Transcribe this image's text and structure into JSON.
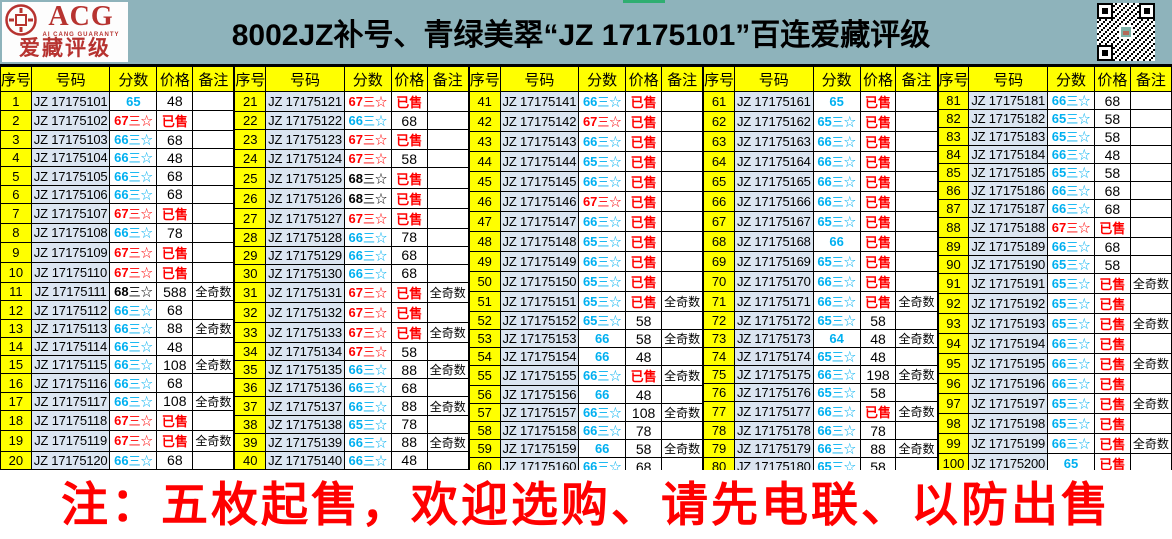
{
  "header": {
    "title": "8002JZ补号、青绿美翠“JZ 17175101”百连爱藏评级",
    "logo": {
      "acronym": "ACG",
      "subtitle": "AI CANG GUARANTY",
      "brand": "爱藏评级"
    },
    "icons": {
      "seal": "coin-seal-icon",
      "qr": "qr-code-icon"
    }
  },
  "colors": {
    "banner_bg": "#8eb3bb",
    "header_cell_yellow": "#ffff00",
    "number_cell_blue": "#dbe5f1",
    "score_blue": "#00B0F0",
    "score_red": "#FF0000",
    "score_black": "#000000",
    "sold_red": "#ff0000",
    "notice_red": "#ff0000",
    "logo_red": "#b73330",
    "green_tab": "#2fae71"
  },
  "table": {
    "columns": [
      "序号",
      "号码",
      "分数",
      "价格",
      "备注"
    ],
    "sold_label": "已售",
    "rows": [
      {
        "no": "1",
        "num": "JZ 17175101",
        "score": "65",
        "color": "#00B0F0",
        "price": "48",
        "note": ""
      },
      {
        "no": "2",
        "num": "JZ 17175102",
        "score": "67三☆",
        "color": "#FF0000",
        "price": "已售",
        "note": ""
      },
      {
        "no": "3",
        "num": "JZ 17175103",
        "score": "66三☆",
        "color": "#00B0F0",
        "price": "68",
        "note": ""
      },
      {
        "no": "4",
        "num": "JZ 17175104",
        "score": "66三☆",
        "color": "#00B0F0",
        "price": "48",
        "note": ""
      },
      {
        "no": "5",
        "num": "JZ 17175105",
        "score": "66三☆",
        "color": "#00B0F0",
        "price": "68",
        "note": ""
      },
      {
        "no": "6",
        "num": "JZ 17175106",
        "score": "66三☆",
        "color": "#00B0F0",
        "price": "68",
        "note": ""
      },
      {
        "no": "7",
        "num": "JZ 17175107",
        "score": "67三☆",
        "color": "#FF0000",
        "price": "已售",
        "note": ""
      },
      {
        "no": "8",
        "num": "JZ 17175108",
        "score": "66三☆",
        "color": "#00B0F0",
        "price": "78",
        "note": ""
      },
      {
        "no": "9",
        "num": "JZ 17175109",
        "score": "67三☆",
        "color": "#FF0000",
        "price": "已售",
        "note": ""
      },
      {
        "no": "10",
        "num": "JZ 17175110",
        "score": "67三☆",
        "color": "#FF0000",
        "price": "已售",
        "note": ""
      },
      {
        "no": "11",
        "num": "JZ 17175111",
        "score": "68三☆",
        "color": "#000000",
        "price": "588",
        "note": "全奇数"
      },
      {
        "no": "12",
        "num": "JZ 17175112",
        "score": "66三☆",
        "color": "#00B0F0",
        "price": "68",
        "note": ""
      },
      {
        "no": "13",
        "num": "JZ 17175113",
        "score": "66三☆",
        "color": "#00B0F0",
        "price": "88",
        "note": "全奇数"
      },
      {
        "no": "14",
        "num": "JZ 17175114",
        "score": "66三☆",
        "color": "#00B0F0",
        "price": "48",
        "note": ""
      },
      {
        "no": "15",
        "num": "JZ 17175115",
        "score": "66三☆",
        "color": "#00B0F0",
        "price": "108",
        "note": "全奇数"
      },
      {
        "no": "16",
        "num": "JZ 17175116",
        "score": "66三☆",
        "color": "#00B0F0",
        "price": "68",
        "note": ""
      },
      {
        "no": "17",
        "num": "JZ 17175117",
        "score": "66三☆",
        "color": "#00B0F0",
        "price": "108",
        "note": "全奇数"
      },
      {
        "no": "18",
        "num": "JZ 17175118",
        "score": "67三☆",
        "color": "#FF0000",
        "price": "已售",
        "note": ""
      },
      {
        "no": "19",
        "num": "JZ 17175119",
        "score": "67三☆",
        "color": "#FF0000",
        "price": "已售",
        "note": "全奇数"
      },
      {
        "no": "20",
        "num": "JZ 17175120",
        "score": "66三☆",
        "color": "#00B0F0",
        "price": "68",
        "note": ""
      },
      {
        "no": "21",
        "num": "JZ 17175121",
        "score": "67三☆",
        "color": "#FF0000",
        "price": "已售",
        "note": ""
      },
      {
        "no": "22",
        "num": "JZ 17175122",
        "score": "66三☆",
        "color": "#00B0F0",
        "price": "68",
        "note": ""
      },
      {
        "no": "23",
        "num": "JZ 17175123",
        "score": "67三☆",
        "color": "#FF0000",
        "price": "已售",
        "note": ""
      },
      {
        "no": "24",
        "num": "JZ 17175124",
        "score": "67三☆",
        "color": "#FF0000",
        "price": "58",
        "note": ""
      },
      {
        "no": "25",
        "num": "JZ 17175125",
        "score": "68三☆",
        "color": "#000000",
        "price": "已售",
        "note": ""
      },
      {
        "no": "26",
        "num": "JZ 17175126",
        "score": "68三☆",
        "color": "#000000",
        "price": "已售",
        "note": ""
      },
      {
        "no": "27",
        "num": "JZ 17175127",
        "score": "67三☆",
        "color": "#FF0000",
        "price": "已售",
        "note": ""
      },
      {
        "no": "28",
        "num": "JZ 17175128",
        "score": "66三☆",
        "color": "#00B0F0",
        "price": "78",
        "note": ""
      },
      {
        "no": "29",
        "num": "JZ 17175129",
        "score": "66三☆",
        "color": "#00B0F0",
        "price": "68",
        "note": ""
      },
      {
        "no": "30",
        "num": "JZ 17175130",
        "score": "66三☆",
        "color": "#00B0F0",
        "price": "68",
        "note": ""
      },
      {
        "no": "31",
        "num": "JZ 17175131",
        "score": "67三☆",
        "color": "#FF0000",
        "price": "已售",
        "note": "全奇数"
      },
      {
        "no": "32",
        "num": "JZ 17175132",
        "score": "67三☆",
        "color": "#FF0000",
        "price": "已售",
        "note": ""
      },
      {
        "no": "33",
        "num": "JZ 17175133",
        "score": "67三☆",
        "color": "#FF0000",
        "price": "已售",
        "note": "全奇数"
      },
      {
        "no": "34",
        "num": "JZ 17175134",
        "score": "67三☆",
        "color": "#FF0000",
        "price": "58",
        "note": ""
      },
      {
        "no": "35",
        "num": "JZ 17175135",
        "score": "66三☆",
        "color": "#00B0F0",
        "price": "88",
        "note": "全奇数"
      },
      {
        "no": "36",
        "num": "JZ 17175136",
        "score": "66三☆",
        "color": "#00B0F0",
        "price": "68",
        "note": ""
      },
      {
        "no": "37",
        "num": "JZ 17175137",
        "score": "66三☆",
        "color": "#00B0F0",
        "price": "88",
        "note": "全奇数"
      },
      {
        "no": "38",
        "num": "JZ 17175138",
        "score": "65三☆",
        "color": "#00B0F0",
        "price": "78",
        "note": ""
      },
      {
        "no": "39",
        "num": "JZ 17175139",
        "score": "66三☆",
        "color": "#00B0F0",
        "price": "88",
        "note": "全奇数"
      },
      {
        "no": "40",
        "num": "JZ 17175140",
        "score": "66三☆",
        "color": "#00B0F0",
        "price": "48",
        "note": ""
      },
      {
        "no": "41",
        "num": "JZ 17175141",
        "score": "66三☆",
        "color": "#00B0F0",
        "price": "已售",
        "note": ""
      },
      {
        "no": "42",
        "num": "JZ 17175142",
        "score": "67三☆",
        "color": "#FF0000",
        "price": "已售",
        "note": ""
      },
      {
        "no": "43",
        "num": "JZ 17175143",
        "score": "66三☆",
        "color": "#00B0F0",
        "price": "已售",
        "note": ""
      },
      {
        "no": "44",
        "num": "JZ 17175144",
        "score": "65三☆",
        "color": "#00B0F0",
        "price": "已售",
        "note": ""
      },
      {
        "no": "45",
        "num": "JZ 17175145",
        "score": "66三☆",
        "color": "#00B0F0",
        "price": "已售",
        "note": ""
      },
      {
        "no": "46",
        "num": "JZ 17175146",
        "score": "67三☆",
        "color": "#FF0000",
        "price": "已售",
        "note": ""
      },
      {
        "no": "47",
        "num": "JZ 17175147",
        "score": "66三☆",
        "color": "#00B0F0",
        "price": "已售",
        "note": ""
      },
      {
        "no": "48",
        "num": "JZ 17175148",
        "score": "65三☆",
        "color": "#00B0F0",
        "price": "已售",
        "note": ""
      },
      {
        "no": "49",
        "num": "JZ 17175149",
        "score": "66三☆",
        "color": "#00B0F0",
        "price": "已售",
        "note": ""
      },
      {
        "no": "50",
        "num": "JZ 17175150",
        "score": "65三☆",
        "color": "#00B0F0",
        "price": "已售",
        "note": ""
      },
      {
        "no": "51",
        "num": "JZ 17175151",
        "score": "65三☆",
        "color": "#00B0F0",
        "price": "已售",
        "note": "全奇数"
      },
      {
        "no": "52",
        "num": "JZ 17175152",
        "score": "65三☆",
        "color": "#00B0F0",
        "price": "58",
        "note": ""
      },
      {
        "no": "53",
        "num": "JZ 17175153",
        "score": "66",
        "color": "#00B0F0",
        "price": "58",
        "note": "全奇数"
      },
      {
        "no": "54",
        "num": "JZ 17175154",
        "score": "66",
        "color": "#00B0F0",
        "price": "48",
        "note": ""
      },
      {
        "no": "55",
        "num": "JZ 17175155",
        "score": "66三☆",
        "color": "#00B0F0",
        "price": "已售",
        "note": "全奇数"
      },
      {
        "no": "56",
        "num": "JZ 17175156",
        "score": "66",
        "color": "#00B0F0",
        "price": "48",
        "note": ""
      },
      {
        "no": "57",
        "num": "JZ 17175157",
        "score": "66三☆",
        "color": "#00B0F0",
        "price": "108",
        "note": "全奇数"
      },
      {
        "no": "58",
        "num": "JZ 17175158",
        "score": "66三☆",
        "color": "#00B0F0",
        "price": "78",
        "note": ""
      },
      {
        "no": "59",
        "num": "JZ 17175159",
        "score": "66",
        "color": "#00B0F0",
        "price": "58",
        "note": "全奇数"
      },
      {
        "no": "60",
        "num": "JZ 17175160",
        "score": "66三☆",
        "color": "#00B0F0",
        "price": "68",
        "note": ""
      },
      {
        "no": "61",
        "num": "JZ 17175161",
        "score": "65",
        "color": "#00B0F0",
        "price": "已售",
        "note": ""
      },
      {
        "no": "62",
        "num": "JZ 17175162",
        "score": "65三☆",
        "color": "#00B0F0",
        "price": "已售",
        "note": ""
      },
      {
        "no": "63",
        "num": "JZ 17175163",
        "score": "66三☆",
        "color": "#00B0F0",
        "price": "已售",
        "note": ""
      },
      {
        "no": "64",
        "num": "JZ 17175164",
        "score": "66三☆",
        "color": "#00B0F0",
        "price": "已售",
        "note": ""
      },
      {
        "no": "65",
        "num": "JZ 17175165",
        "score": "66三☆",
        "color": "#00B0F0",
        "price": "已售",
        "note": ""
      },
      {
        "no": "66",
        "num": "JZ 17175166",
        "score": "66三☆",
        "color": "#00B0F0",
        "price": "已售",
        "note": ""
      },
      {
        "no": "67",
        "num": "JZ 17175167",
        "score": "65三☆",
        "color": "#00B0F0",
        "price": "已售",
        "note": ""
      },
      {
        "no": "68",
        "num": "JZ 17175168",
        "score": "66",
        "color": "#00B0F0",
        "price": "已售",
        "note": ""
      },
      {
        "no": "69",
        "num": "JZ 17175169",
        "score": "65三☆",
        "color": "#00B0F0",
        "price": "已售",
        "note": ""
      },
      {
        "no": "70",
        "num": "JZ 17175170",
        "score": "66三☆",
        "color": "#00B0F0",
        "price": "已售",
        "note": ""
      },
      {
        "no": "71",
        "num": "JZ 17175171",
        "score": "66三☆",
        "color": "#00B0F0",
        "price": "已售",
        "note": "全奇数"
      },
      {
        "no": "72",
        "num": "JZ 17175172",
        "score": "65三☆",
        "color": "#00B0F0",
        "price": "58",
        "note": ""
      },
      {
        "no": "73",
        "num": "JZ 17175173",
        "score": "64",
        "color": "#00B0F0",
        "price": "48",
        "note": "全奇数"
      },
      {
        "no": "74",
        "num": "JZ 17175174",
        "score": "65三☆",
        "color": "#00B0F0",
        "price": "48",
        "note": ""
      },
      {
        "no": "75",
        "num": "JZ 17175175",
        "score": "66三☆",
        "color": "#00B0F0",
        "price": "198",
        "note": "全奇数"
      },
      {
        "no": "76",
        "num": "JZ 17175176",
        "score": "65三☆",
        "color": "#00B0F0",
        "price": "58",
        "note": ""
      },
      {
        "no": "77",
        "num": "JZ 17175177",
        "score": "66三☆",
        "color": "#00B0F0",
        "price": "已售",
        "note": "全奇数"
      },
      {
        "no": "78",
        "num": "JZ 17175178",
        "score": "66三☆",
        "color": "#00B0F0",
        "price": "78",
        "note": ""
      },
      {
        "no": "79",
        "num": "JZ 17175179",
        "score": "66三☆",
        "color": "#00B0F0",
        "price": "88",
        "note": "全奇数"
      },
      {
        "no": "80",
        "num": "JZ 17175180",
        "score": "65三☆",
        "color": "#00B0F0",
        "price": "58",
        "note": ""
      },
      {
        "no": "81",
        "num": "JZ 17175181",
        "score": "66三☆",
        "color": "#00B0F0",
        "price": "68",
        "note": ""
      },
      {
        "no": "82",
        "num": "JZ 17175182",
        "score": "65三☆",
        "color": "#00B0F0",
        "price": "58",
        "note": ""
      },
      {
        "no": "83",
        "num": "JZ 17175183",
        "score": "65三☆",
        "color": "#00B0F0",
        "price": "58",
        "note": ""
      },
      {
        "no": "84",
        "num": "JZ 17175184",
        "score": "66三☆",
        "color": "#00B0F0",
        "price": "48",
        "note": ""
      },
      {
        "no": "85",
        "num": "JZ 17175185",
        "score": "65三☆",
        "color": "#00B0F0",
        "price": "58",
        "note": ""
      },
      {
        "no": "86",
        "num": "JZ 17175186",
        "score": "66三☆",
        "color": "#00B0F0",
        "price": "68",
        "note": ""
      },
      {
        "no": "87",
        "num": "JZ 17175187",
        "score": "66三☆",
        "color": "#00B0F0",
        "price": "68",
        "note": ""
      },
      {
        "no": "88",
        "num": "JZ 17175188",
        "score": "67三☆",
        "color": "#FF0000",
        "price": "已售",
        "note": ""
      },
      {
        "no": "89",
        "num": "JZ 17175189",
        "score": "66三☆",
        "color": "#00B0F0",
        "price": "68",
        "note": ""
      },
      {
        "no": "90",
        "num": "JZ 17175190",
        "score": "65三☆",
        "color": "#00B0F0",
        "price": "58",
        "note": ""
      },
      {
        "no": "91",
        "num": "JZ 17175191",
        "score": "65三☆",
        "color": "#00B0F0",
        "price": "已售",
        "note": "全奇数"
      },
      {
        "no": "92",
        "num": "JZ 17175192",
        "score": "65三☆",
        "color": "#00B0F0",
        "price": "已售",
        "note": ""
      },
      {
        "no": "93",
        "num": "JZ 17175193",
        "score": "65三☆",
        "color": "#00B0F0",
        "price": "已售",
        "note": "全奇数"
      },
      {
        "no": "94",
        "num": "JZ 17175194",
        "score": "66三☆",
        "color": "#00B0F0",
        "price": "已售",
        "note": ""
      },
      {
        "no": "95",
        "num": "JZ 17175195",
        "score": "66三☆",
        "color": "#00B0F0",
        "price": "已售",
        "note": "全奇数"
      },
      {
        "no": "96",
        "num": "JZ 17175196",
        "score": "66三☆",
        "color": "#00B0F0",
        "price": "已售",
        "note": ""
      },
      {
        "no": "97",
        "num": "JZ 17175197",
        "score": "65三☆",
        "color": "#00B0F0",
        "price": "已售",
        "note": "全奇数"
      },
      {
        "no": "98",
        "num": "JZ 17175198",
        "score": "65三☆",
        "color": "#00B0F0",
        "price": "已售",
        "note": ""
      },
      {
        "no": "99",
        "num": "JZ 17175199",
        "score": "66三☆",
        "color": "#00B0F0",
        "price": "已售",
        "note": "全奇数"
      },
      {
        "no": "100",
        "num": "JZ 17175200",
        "score": "65",
        "color": "#00B0F0",
        "price": "已售",
        "note": ""
      }
    ]
  },
  "footer": {
    "notice": "注：五枚起售，欢迎选购、请先电联、以防出售"
  }
}
